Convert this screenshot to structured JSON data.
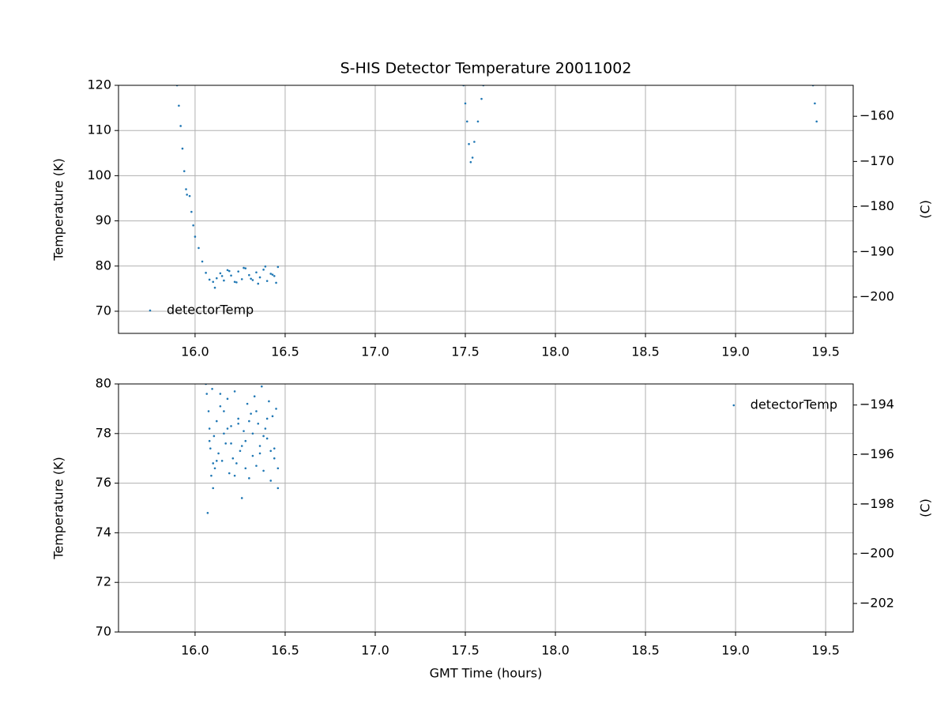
{
  "chart_data": [
    {
      "type": "scatter",
      "title": "S-HIS Detector Temperature 20011002",
      "ylabel": "Temperature (K)",
      "y2label": "(C)",
      "xlim": [
        15.575,
        19.653
      ],
      "ylim": [
        65.1,
        120
      ],
      "y2lim": [
        -208.05,
        -153.15
      ],
      "xticks": [
        {
          "value": 16,
          "label": "16.0"
        },
        {
          "value": 16.5,
          "label": "16.5"
        },
        {
          "value": 17,
          "label": "17.0"
        },
        {
          "value": 17.5,
          "label": "17.5"
        },
        {
          "value": 18,
          "label": "18.0"
        },
        {
          "value": 18.5,
          "label": "18.5"
        },
        {
          "value": 19,
          "label": "19.0"
        },
        {
          "value": 19.5,
          "label": "19.5"
        }
      ],
      "yticks": [
        70,
        80,
        90,
        100,
        110,
        120
      ],
      "y2ticks": [
        {
          "value": -200,
          "label": "−200"
        },
        {
          "value": -190,
          "label": "−190"
        },
        {
          "value": -180,
          "label": "−180"
        },
        {
          "value": -170,
          "label": "−170"
        },
        {
          "value": -160,
          "label": "−160"
        }
      ],
      "grid": true,
      "legend": "lower left",
      "series": [
        {
          "name": "detectorTemp",
          "color": "#1f77b4",
          "x": [
            15.9,
            15.91,
            15.92,
            15.93,
            15.94,
            15.95,
            15.955,
            15.97,
            15.98,
            15.99,
            16.0,
            16.02,
            16.04,
            16.06,
            16.08,
            16.1,
            16.12,
            16.14,
            16.16,
            16.18,
            16.2,
            16.22,
            16.24,
            16.26,
            16.28,
            16.3,
            16.32,
            16.34,
            16.36,
            16.38,
            16.4,
            16.42,
            16.44,
            16.46,
            16.11,
            16.15,
            16.19,
            16.23,
            16.27,
            16.31,
            16.35,
            16.39,
            16.43,
            16.45,
            17.49,
            17.5,
            17.51,
            17.52,
            17.53,
            17.54,
            17.55,
            17.57,
            17.59,
            17.6,
            19.43,
            19.44,
            19.45
          ],
          "values": [
            120,
            115.5,
            111,
            106,
            101,
            97,
            95.8,
            95.5,
            92,
            89,
            86.5,
            84,
            81,
            78.5,
            77,
            76.5,
            77.3,
            78.4,
            76.8,
            79.1,
            77.9,
            76.5,
            78.8,
            77.1,
            79.5,
            78,
            76.9,
            78.6,
            77.5,
            79.2,
            76.7,
            78.3,
            77.8,
            79.8,
            75.2,
            77.8,
            78.9,
            76.4,
            79.6,
            77.2,
            76.1,
            79.9,
            78.1,
            76.3,
            120,
            116,
            112,
            107,
            103,
            104,
            107.5,
            112,
            117,
            120,
            120,
            116,
            112
          ]
        }
      ]
    },
    {
      "type": "scatter",
      "xlabel": "GMT Time (hours)",
      "ylabel": "Temperature (K)",
      "y2label": "(C)",
      "xlim": [
        15.575,
        19.653
      ],
      "ylim": [
        70,
        80
      ],
      "y2lim": [
        -203.15,
        -193.15
      ],
      "xticks": [
        {
          "value": 16,
          "label": "16.0"
        },
        {
          "value": 16.5,
          "label": "16.5"
        },
        {
          "value": 17,
          "label": "17.0"
        },
        {
          "value": 17.5,
          "label": "17.5"
        },
        {
          "value": 18,
          "label": "18.0"
        },
        {
          "value": 18.5,
          "label": "18.5"
        },
        {
          "value": 19,
          "label": "19.0"
        },
        {
          "value": 19.5,
          "label": "19.5"
        }
      ],
      "yticks": [
        70,
        72,
        74,
        76,
        78,
        80
      ],
      "y2ticks": [
        {
          "value": -202,
          "label": "−202"
        },
        {
          "value": -200,
          "label": "−200"
        },
        {
          "value": -198,
          "label": "−198"
        },
        {
          "value": -196,
          "label": "−196"
        },
        {
          "value": -194,
          "label": "−194"
        }
      ],
      "grid": true,
      "legend": "upper right",
      "series": [
        {
          "name": "detectorTemp",
          "color": "#1f77b4",
          "x": [
            16.06,
            16.065,
            16.07,
            16.075,
            16.08,
            16.085,
            16.09,
            16.095,
            16.1,
            16.105,
            16.11,
            16.12,
            16.13,
            16.14,
            16.15,
            16.16,
            16.17,
            16.18,
            16.19,
            16.2,
            16.21,
            16.22,
            16.23,
            16.24,
            16.25,
            16.26,
            16.27,
            16.28,
            16.29,
            16.3,
            16.31,
            16.32,
            16.33,
            16.34,
            16.35,
            16.36,
            16.37,
            16.38,
            16.39,
            16.4,
            16.41,
            16.42,
            16.43,
            16.44,
            16.45,
            16.46,
            16.08,
            16.12,
            16.16,
            16.2,
            16.24,
            16.28,
            16.32,
            16.36,
            16.4,
            16.44,
            16.1,
            16.18,
            16.26,
            16.34,
            16.42,
            16.46,
            16.14,
            16.22,
            16.3,
            16.38
          ],
          "values": [
            80,
            79.6,
            74.8,
            78.9,
            78.2,
            77.4,
            76.3,
            79.8,
            75.8,
            77.9,
            76.6,
            78.5,
            77.2,
            79.1,
            76.9,
            78.0,
            77.6,
            79.4,
            76.4,
            78.3,
            77.0,
            79.7,
            76.8,
            78.6,
            77.3,
            75.4,
            78.1,
            77.7,
            79.2,
            76.2,
            78.8,
            77.1,
            79.5,
            76.7,
            78.4,
            77.5,
            79.9,
            76.5,
            78.2,
            77.8,
            79.3,
            76.1,
            78.7,
            77.4,
            79.0,
            75.8,
            77.7,
            76.9,
            78.9,
            77.6,
            78.4,
            76.6,
            78.0,
            77.2,
            78.6,
            77.0,
            76.8,
            78.2,
            77.5,
            78.9,
            77.3,
            76.6,
            79.6,
            76.3,
            78.5,
            77.9
          ]
        }
      ]
    }
  ]
}
